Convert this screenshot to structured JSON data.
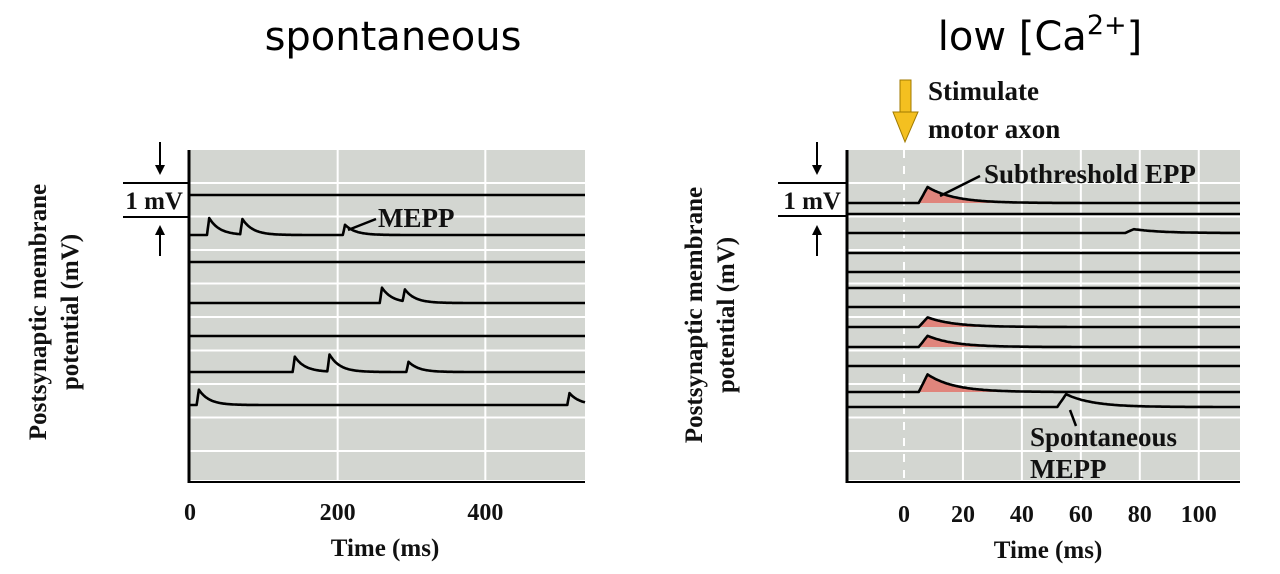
{
  "chart_data": [
    {
      "type": "line",
      "title": "spontaneous",
      "xlabel": "Time (ms)",
      "ylabel_line1": "Postsynaptic membrane",
      "ylabel_line2": "potential (mV)",
      "scale_bar_label": "1 mV",
      "xlim": [
        0,
        535
      ],
      "xticks": [
        0,
        200,
        400
      ],
      "xtick_labels": [
        "0",
        "200",
        "400"
      ],
      "grid": true,
      "annotation": "MEPP",
      "traces": [
        {
          "events": []
        },
        {
          "events": [
            {
              "t": 23,
              "amp_mV": 0.5
            },
            {
              "t": 68,
              "amp_mV": 0.45
            },
            {
              "t": 207,
              "amp_mV": 0.3
            }
          ]
        },
        {
          "events": []
        },
        {
          "events": [
            {
              "t": 257,
              "amp_mV": 0.45
            },
            {
              "t": 288,
              "amp_mV": 0.35
            }
          ]
        },
        {
          "events": []
        },
        {
          "events": [
            {
              "t": 139,
              "amp_mV": 0.45
            },
            {
              "t": 186,
              "amp_mV": 0.5
            },
            {
              "t": 293,
              "amp_mV": 0.3
            }
          ]
        },
        {
          "events": [
            {
              "t": 9,
              "amp_mV": 0.45
            },
            {
              "t": 511,
              "amp_mV": 0.35
            }
          ]
        }
      ]
    },
    {
      "type": "line",
      "title": "low [Ca",
      "title_sup": "2+",
      "title_end": "]",
      "xlabel": "Time (ms)",
      "ylabel_line1": "Postsynaptic membrane",
      "ylabel_line2": "potential (mV)",
      "scale_bar_label": "1 mV",
      "xlim": [
        -19,
        114
      ],
      "xticks": [
        0,
        20,
        40,
        60,
        80,
        100
      ],
      "xtick_labels": [
        "0",
        "20",
        "40",
        "60",
        "80",
        "100"
      ],
      "grid": true,
      "stimulus_time": 0,
      "stimulus_label_line1": "Stimulate",
      "stimulus_label_line2": "motor axon",
      "epp_label": "Subthreshold EPP",
      "mepp_label_line1": "Spontaneous",
      "mepp_label_line2": "MEPP",
      "traces": [
        {
          "events": [
            {
              "t": 5,
              "amp_mV": 0.5,
              "epp": true
            }
          ]
        },
        {
          "events": []
        },
        {
          "events": [
            {
              "t": 75,
              "amp_mV": 0.12
            }
          ]
        },
        {
          "events": []
        },
        {
          "events": []
        },
        {
          "events": []
        },
        {
          "events": []
        },
        {
          "events": [
            {
              "t": 5,
              "amp_mV": 0.3,
              "epp": true
            }
          ]
        },
        {
          "events": [
            {
              "t": 5,
              "amp_mV": 0.35,
              "epp": true
            }
          ]
        },
        {
          "events": []
        },
        {
          "events": [
            {
              "t": 5,
              "amp_mV": 0.55,
              "epp": true
            }
          ]
        },
        {
          "events": [
            {
              "t": 52,
              "amp_mV": 0.4
            }
          ]
        }
      ]
    }
  ],
  "colors": {
    "plot_bg": "#d3d6d1",
    "grid": "#ffffff",
    "trace": "#000000",
    "epp_fill": "#e0857c",
    "stimulus_arrow": "#f4c020"
  }
}
